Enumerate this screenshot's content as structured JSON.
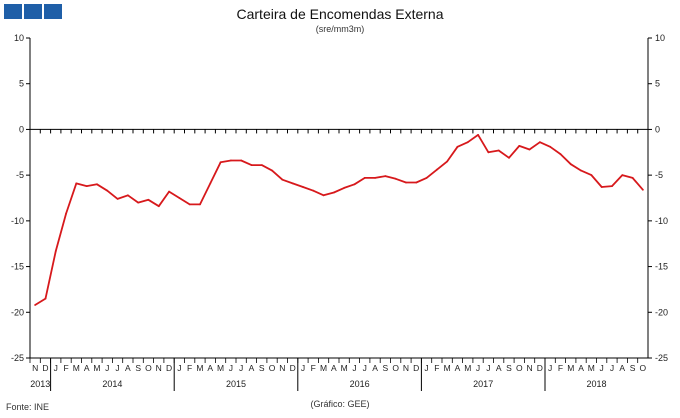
{
  "title": "Carteira de Encomendas Externa",
  "subtitle": "(sre/mm3m)",
  "source": "Fonte: INE",
  "credit": "(Gráfico: GEE)",
  "colors": {
    "line": "#d7191c",
    "logo": "#1f5fa8",
    "axis": "#000000"
  },
  "chart_data": {
    "type": "line",
    "title": "Carteira de Encomendas Externa",
    "subtitle": "(sre/mm3m)",
    "ylim": [
      -25,
      10
    ],
    "yticks": [
      10,
      5,
      0,
      -5,
      -10,
      -15,
      -20,
      -25
    ],
    "grid": false,
    "month_labels": [
      "N",
      "D",
      "J",
      "F",
      "M",
      "A",
      "M",
      "J",
      "J",
      "A",
      "S",
      "O",
      "N",
      "D",
      "J",
      "F",
      "M",
      "A",
      "M",
      "J",
      "J",
      "A",
      "S",
      "O",
      "N",
      "D",
      "J",
      "F",
      "M",
      "A",
      "M",
      "J",
      "J",
      "A",
      "S",
      "O",
      "N",
      "D",
      "J",
      "F",
      "M",
      "A",
      "M",
      "J",
      "J",
      "A",
      "S",
      "O",
      "N",
      "D",
      "J",
      "F",
      "M",
      "A",
      "M",
      "J",
      "J",
      "A",
      "S",
      "O"
    ],
    "years": [
      {
        "label": "2013",
        "start": 0,
        "end": 1
      },
      {
        "label": "2014",
        "start": 2,
        "end": 13
      },
      {
        "label": "2015",
        "start": 14,
        "end": 25
      },
      {
        "label": "2016",
        "start": 26,
        "end": 37
      },
      {
        "label": "2017",
        "start": 38,
        "end": 49
      },
      {
        "label": "2018",
        "start": 50,
        "end": 59
      }
    ],
    "series": [
      {
        "values": [
          -19.2,
          -18.5,
          -13.3,
          -9.2,
          -5.9,
          -6.2,
          -6.0,
          -6.7,
          -7.6,
          -7.2,
          -8.0,
          -7.7,
          -8.4,
          -6.8,
          -7.5,
          -8.2,
          -8.2,
          -5.9,
          -3.6,
          -3.4,
          -3.4,
          -3.9,
          -3.9,
          -4.5,
          -5.5,
          -5.9,
          -6.3,
          -6.7,
          -7.2,
          -6.9,
          -6.4,
          -6.0,
          -5.3,
          -5.3,
          -5.1,
          -5.4,
          -5.8,
          -5.8,
          -5.3,
          -4.4,
          -3.5,
          -1.9,
          -1.4,
          -0.6,
          -2.5,
          -2.3,
          -3.1,
          -1.8,
          -2.2,
          -1.4,
          -1.9,
          -2.7,
          -3.8,
          -4.5,
          -5.0,
          -6.3,
          -6.2,
          -5.0,
          -5.3,
          -6.6
        ]
      }
    ]
  }
}
